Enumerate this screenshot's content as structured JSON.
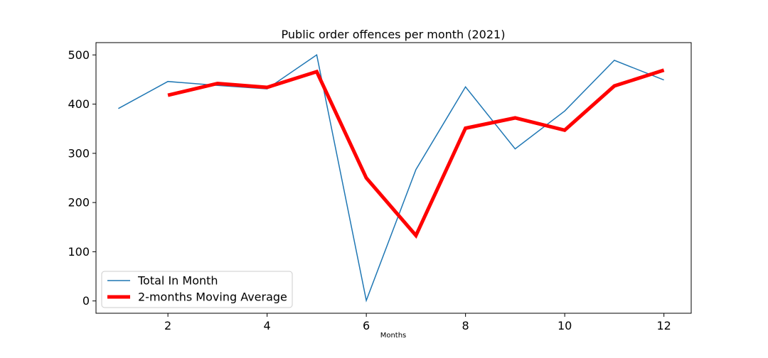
{
  "chart_data": {
    "type": "line",
    "title": "Public order offences per month (2021)",
    "xlabel": "Months",
    "ylabel": "",
    "xlim": [
      0.55,
      12.55
    ],
    "ylim": [
      -25,
      525
    ],
    "xticks": [
      2,
      4,
      6,
      8,
      10,
      12
    ],
    "yticks": [
      0,
      100,
      200,
      300,
      400,
      500
    ],
    "grid": false,
    "legend_position": "lower-left",
    "series": [
      {
        "name": "Total In Month",
        "color": "#1f77b4",
        "x": [
          1,
          2,
          3,
          4,
          5,
          6,
          7,
          8,
          9,
          10,
          11,
          12
        ],
        "values": [
          391,
          446,
          438,
          431,
          500,
          1,
          267,
          435,
          309,
          386,
          489,
          449
        ]
      },
      {
        "name": "2-months Moving Average",
        "color": "#ff0000",
        "x": [
          2,
          3,
          4,
          5,
          6,
          7,
          8,
          9,
          10,
          11,
          12
        ],
        "values": [
          418,
          442,
          434,
          466,
          250,
          133,
          351,
          372,
          347,
          437,
          469
        ]
      }
    ]
  }
}
